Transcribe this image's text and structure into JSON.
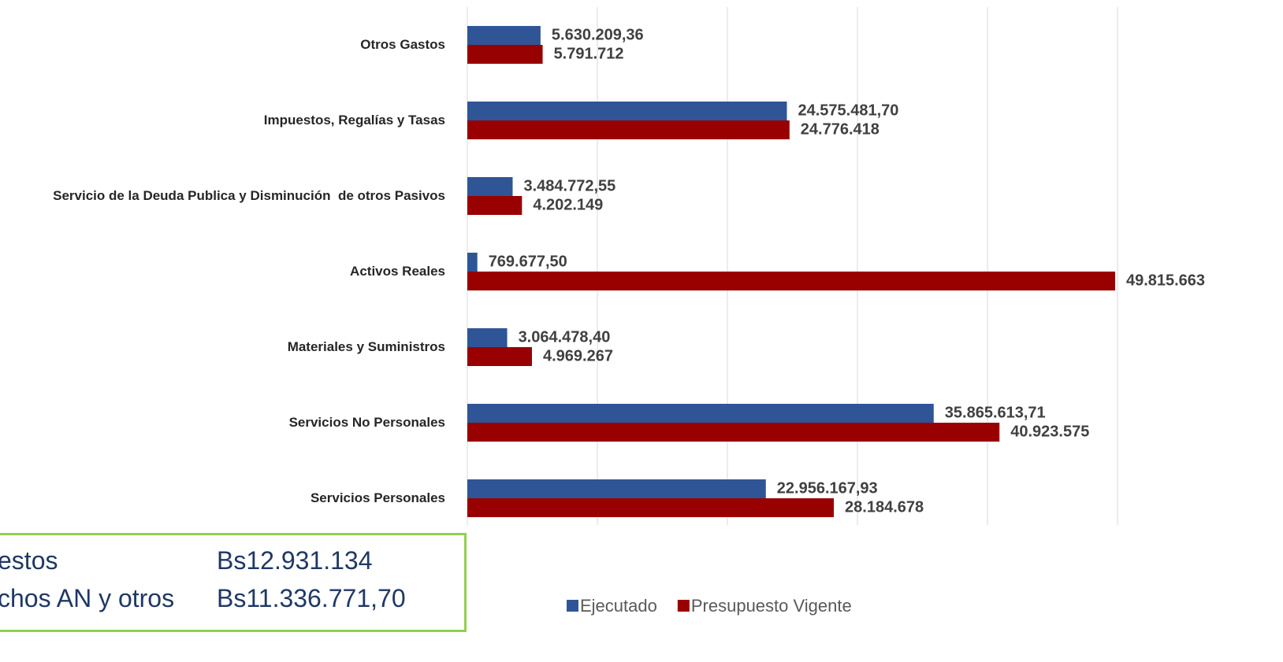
{
  "chart_data": {
    "type": "hbar",
    "categories": [
      "Otros Gastos",
      "Impuestos, Regalías y Tasas",
      "Servicio de la Deuda Publica y Disminución  de otros Pasivos",
      "Activos Reales",
      "Materiales y Suministros",
      "Servicios No Personales",
      "Servicios Personales"
    ],
    "series": [
      {
        "name": "Ejecutado",
        "color": "#2f5597",
        "values": [
          5630209.36,
          24575481.7,
          3484772.55,
          769677.5,
          3064478.4,
          35865613.71,
          22956167.93
        ],
        "value_labels": [
          "5.630.209,36",
          "24.575.481,70",
          "3.484.772,55",
          "769.677,50",
          "3.064.478,40",
          "35.865.613,71",
          "22.956.167,93"
        ]
      },
      {
        "name": "Presupuesto Vigente",
        "color": "#990000",
        "values": [
          5791712,
          24776418,
          4202149,
          49815663,
          4969267,
          40923575,
          28184678
        ],
        "value_labels": [
          "5.791.712",
          "24.776.418",
          "4.202.149",
          "49.815.663",
          "4.969.267",
          "40.923.575",
          "28.184.678"
        ]
      }
    ],
    "xlim": [
      0,
      50000000
    ],
    "xticks": [
      0,
      10000000,
      20000000,
      30000000,
      40000000,
      50000000
    ],
    "grid": true,
    "legend": "bottom",
    "annotations": [
      {
        "label": "estos",
        "value": "Bs12.931.134"
      },
      {
        "label": "chos AN y otros",
        "value": "Bs11.336.771,70"
      }
    ]
  }
}
